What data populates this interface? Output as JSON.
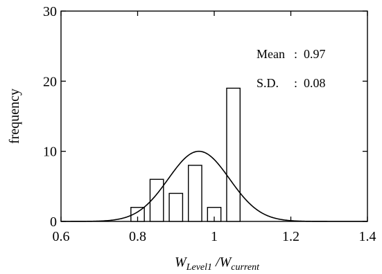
{
  "chart_data": {
    "type": "bar",
    "bins": [
      {
        "x": 0.8,
        "value": 2
      },
      {
        "x": 0.85,
        "value": 6
      },
      {
        "x": 0.9,
        "value": 4
      },
      {
        "x": 0.95,
        "value": 8
      },
      {
        "x": 1.0,
        "value": 2
      },
      {
        "x": 1.05,
        "value": 19
      }
    ],
    "bin_width": 0.035,
    "fit_curve": {
      "type": "normal",
      "mean": 0.96,
      "sd": 0.08,
      "peak": 10
    },
    "stats": {
      "mean_label": "Mean",
      "mean_sep": ":",
      "mean_value": "0.97",
      "sd_label": "S.D.",
      "sd_sep": ":",
      "sd_value": "0.08"
    },
    "xlim": [
      0.6,
      1.4
    ],
    "ylim": [
      0,
      30
    ],
    "xticks": [
      0.6,
      0.8,
      1,
      1.2,
      1.4
    ],
    "xtick_labels": [
      "0.6",
      "0.8",
      "1",
      "1.2",
      "1.4"
    ],
    "yticks": [
      0,
      10,
      20,
      30
    ],
    "ytick_labels": [
      "0",
      "10",
      "20",
      "30"
    ],
    "ylabel": "frequency",
    "xlabel": {
      "w1": "W",
      "sub1": "Level1",
      "slash": " /",
      "w2": "W",
      "sub2": "current"
    },
    "grid": false,
    "legend": "none",
    "colors": {
      "bar_fill": "#ffffff",
      "stroke": "#000000"
    }
  }
}
